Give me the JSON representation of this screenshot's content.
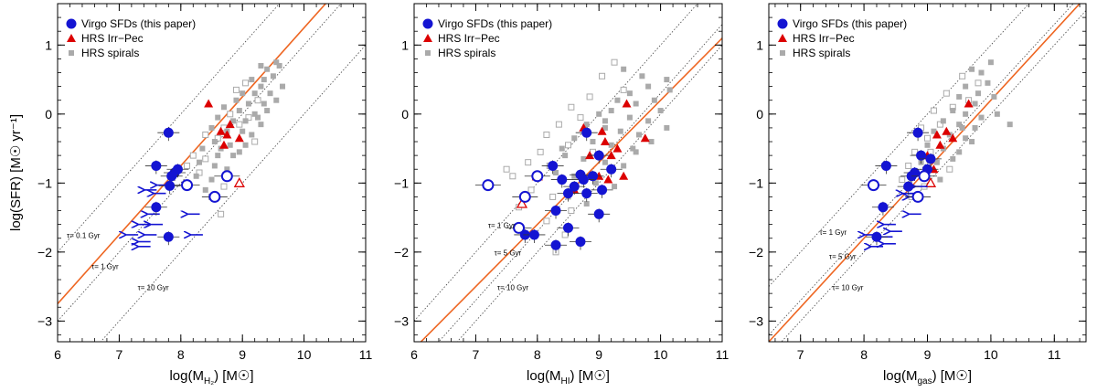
{
  "chart_data": [
    {
      "type": "scatter",
      "panel": "left",
      "xlabel_main": "log(M",
      "xlabel_sub": "H₂",
      "xlabel_tail": ") [M☉]",
      "ylabel": "log(SFR) [M☉ yr⁻¹]",
      "xlim": [
        6,
        11
      ],
      "ylim": [
        -3.3,
        1.6
      ],
      "xticks": [
        6,
        7,
        8,
        9,
        10,
        11
      ],
      "xtick_labels": [
        "6",
        "7",
        "8",
        "9",
        "10",
        "11"
      ],
      "yticks": [
        1,
        0,
        -1,
        -2,
        -3
      ],
      "ytick_labels": [
        "1",
        "0",
        "−1",
        "−2",
        "−3"
      ],
      "legend": [
        "Virgo SFDs (this paper)",
        "HRS Irr−Pec",
        "HRS spirals"
      ],
      "fit_line": {
        "slope": 1.0,
        "intercept": -8.75
      },
      "tau_lines": [
        {
          "label": "τ= 0.1 Gyr",
          "log_tau": 8,
          "label_x": 6.15,
          "label_y": -1.8
        },
        {
          "label": "τ= 1 Gyr",
          "log_tau": 9,
          "label_x": 6.55,
          "label_y": -2.25
        },
        {
          "label": "τ= 10 Gyr",
          "log_tau": 10,
          "label_x": 7.3,
          "label_y": -2.55
        }
      ],
      "virgo_filled": [
        [
          7.8,
          -0.27
        ],
        [
          7.6,
          -0.75
        ],
        [
          7.9,
          -0.85
        ],
        [
          7.95,
          -0.8
        ],
        [
          7.85,
          -0.9
        ],
        [
          7.82,
          -1.04
        ],
        [
          7.6,
          -1.35
        ],
        [
          7.8,
          -1.78
        ]
      ],
      "virgo_open": [
        [
          8.1,
          -1.03
        ],
        [
          8.75,
          -0.9
        ],
        [
          8.55,
          -1.2
        ]
      ],
      "virgo_upper_limits": [
        [
          7.4,
          -1.1
        ],
        [
          7.6,
          -1.03
        ],
        [
          7.55,
          -1.15
        ],
        [
          7.45,
          -1.45
        ],
        [
          7.3,
          -1.6
        ],
        [
          7.5,
          -1.6
        ],
        [
          7.1,
          -1.75
        ],
        [
          7.4,
          -1.75
        ],
        [
          7.3,
          -1.85
        ],
        [
          7.3,
          -1.92
        ],
        [
          8.15,
          -1.75
        ],
        [
          8.1,
          -1.45
        ]
      ],
      "hrs_irr_filled": [
        [
          8.45,
          0.15
        ],
        [
          8.75,
          -0.3
        ],
        [
          8.65,
          -0.25
        ],
        [
          8.7,
          -0.45
        ],
        [
          8.95,
          -0.35
        ],
        [
          8.8,
          -0.15
        ]
      ],
      "hrs_irr_open": [
        [
          8.95,
          -1.0
        ]
      ],
      "hrs_spirals_filled": [
        [
          9.3,
          0.7
        ],
        [
          9.4,
          0.65
        ],
        [
          9.55,
          0.75
        ],
        [
          9.6,
          0.7
        ],
        [
          9.15,
          0.5
        ],
        [
          9.35,
          0.5
        ],
        [
          9.5,
          0.55
        ],
        [
          9.65,
          0.4
        ],
        [
          9.3,
          0.4
        ],
        [
          9.0,
          0.3
        ],
        [
          9.2,
          0.3
        ],
        [
          9.45,
          0.3
        ],
        [
          8.9,
          0.2
        ],
        [
          9.1,
          0.15
        ],
        [
          9.35,
          0.15
        ],
        [
          9.55,
          0.2
        ],
        [
          8.7,
          0.1
        ],
        [
          8.95,
          0.05
        ],
        [
          9.2,
          0.0
        ],
        [
          9.4,
          0.05
        ],
        [
          8.6,
          -0.05
        ],
        [
          8.85,
          -0.1
        ],
        [
          9.05,
          -0.1
        ],
        [
          9.3,
          -0.15
        ],
        [
          8.5,
          -0.2
        ],
        [
          8.75,
          -0.25
        ],
        [
          9.0,
          -0.25
        ],
        [
          9.15,
          -0.3
        ],
        [
          8.55,
          -0.4
        ],
        [
          8.8,
          -0.45
        ],
        [
          9.05,
          -0.45
        ],
        [
          8.35,
          -0.5
        ],
        [
          8.6,
          -0.6
        ],
        [
          8.85,
          -0.6
        ],
        [
          8.3,
          -0.7
        ],
        [
          8.55,
          -0.75
        ],
        [
          8.75,
          -0.8
        ],
        [
          8.25,
          -0.9
        ],
        [
          8.5,
          -0.95
        ],
        [
          8.4,
          -1.1
        ],
        [
          8.95,
          -0.55
        ],
        [
          9.25,
          -0.05
        ],
        [
          8.65,
          -0.5
        ]
      ],
      "hrs_spirals_open": [
        [
          9.05,
          0.45
        ],
        [
          8.9,
          0.35
        ],
        [
          9.25,
          0.2
        ],
        [
          8.8,
          0.0
        ],
        [
          9.1,
          -0.05
        ],
        [
          8.7,
          -0.2
        ],
        [
          8.95,
          -0.15
        ],
        [
          8.4,
          -0.3
        ],
        [
          8.6,
          -0.35
        ],
        [
          8.2,
          -0.6
        ],
        [
          8.4,
          -0.65
        ],
        [
          8.3,
          -0.85
        ],
        [
          8.1,
          -0.75
        ],
        [
          9.2,
          -0.4
        ],
        [
          8.7,
          -1.05
        ],
        [
          8.5,
          -1.2
        ],
        [
          8.65,
          -1.45
        ]
      ]
    },
    {
      "type": "scatter",
      "panel": "middle",
      "xlabel_main": "log(M",
      "xlabel_sub": "HI",
      "xlabel_tail": ") [M☉]",
      "xlim": [
        6,
        11
      ],
      "ylim": [
        -3.3,
        1.6
      ],
      "xticks": [
        6,
        7,
        8,
        9,
        10,
        11
      ],
      "xtick_labels": [
        "6",
        "7",
        "8",
        "9",
        "10",
        "11"
      ],
      "yticks": [
        1,
        0,
        -1,
        -2,
        -3
      ],
      "ytick_labels": [
        "1",
        "0",
        "−1",
        "−2",
        "−3"
      ],
      "legend": [
        "Virgo SFDs (this paper)",
        "HRS Irr−Pec",
        "HRS spirals"
      ],
      "fit_line": {
        "slope": 0.9,
        "intercept": -8.8
      },
      "tau_lines": [
        {
          "label": "τ= 1 Gyr",
          "log_tau": 9,
          "label_x": 7.2,
          "label_y": -1.65
        },
        {
          "label": "τ= 5 Gyr",
          "log_tau": 9.7,
          "label_x": 7.3,
          "label_y": -2.05
        },
        {
          "label": "τ= 10 Gyr",
          "log_tau": 10,
          "label_x": 7.35,
          "label_y": -2.55
        }
      ],
      "virgo_filled": [
        [
          8.25,
          -0.75
        ],
        [
          8.8,
          -0.27
        ],
        [
          8.4,
          -0.95
        ],
        [
          9.0,
          -0.6
        ],
        [
          8.7,
          -0.88
        ],
        [
          8.9,
          -0.9
        ],
        [
          8.6,
          -1.05
        ],
        [
          8.5,
          -1.15
        ],
        [
          8.8,
          -1.15
        ],
        [
          9.05,
          -1.1
        ],
        [
          8.3,
          -1.4
        ],
        [
          9.0,
          -1.45
        ],
        [
          8.5,
          -1.65
        ],
        [
          7.8,
          -1.75
        ],
        [
          7.95,
          -1.75
        ],
        [
          8.3,
          -1.9
        ],
        [
          8.7,
          -1.85
        ],
        [
          9.2,
          -0.8
        ],
        [
          8.75,
          -0.95
        ]
      ],
      "virgo_open": [
        [
          7.2,
          -1.03
        ],
        [
          7.8,
          -1.2
        ],
        [
          8.0,
          -0.9
        ],
        [
          7.7,
          -1.65
        ]
      ],
      "hrs_irr_filled": [
        [
          9.45,
          0.15
        ],
        [
          9.75,
          -0.35
        ],
        [
          8.75,
          -0.2
        ],
        [
          9.05,
          -0.25
        ],
        [
          9.1,
          -0.4
        ],
        [
          9.3,
          -0.5
        ],
        [
          8.85,
          -0.6
        ],
        [
          9.2,
          -0.6
        ],
        [
          9.0,
          -0.9
        ],
        [
          9.15,
          -0.95
        ],
        [
          9.4,
          -0.9
        ],
        [
          8.6,
          -1.1
        ]
      ],
      "hrs_irr_open": [
        [
          7.75,
          -1.3
        ],
        [
          8.0,
          -0.9
        ]
      ],
      "hrs_spirals_filled": [
        [
          9.4,
          0.65
        ],
        [
          9.7,
          0.55
        ],
        [
          9.8,
          0.4
        ],
        [
          9.5,
          0.3
        ],
        [
          10.1,
          0.5
        ],
        [
          10.15,
          0.35
        ],
        [
          9.3,
          0.2
        ],
        [
          9.6,
          0.15
        ],
        [
          9.9,
          0.2
        ],
        [
          10.0,
          0.05
        ],
        [
          9.0,
          0.0
        ],
        [
          9.2,
          0.05
        ],
        [
          9.5,
          -0.05
        ],
        [
          9.8,
          -0.1
        ],
        [
          8.8,
          -0.15
        ],
        [
          9.1,
          -0.2
        ],
        [
          9.35,
          -0.25
        ],
        [
          9.65,
          -0.3
        ],
        [
          10.1,
          -0.2
        ],
        [
          8.6,
          -0.35
        ],
        [
          8.9,
          -0.4
        ],
        [
          9.2,
          -0.45
        ],
        [
          9.55,
          -0.5
        ],
        [
          8.45,
          -0.6
        ],
        [
          8.75,
          -0.65
        ],
        [
          9.1,
          -0.7
        ],
        [
          9.4,
          -0.75
        ],
        [
          8.3,
          -0.85
        ],
        [
          8.6,
          -0.9
        ],
        [
          8.95,
          -1.0
        ],
        [
          9.25,
          -1.05
        ],
        [
          8.5,
          -1.2
        ],
        [
          8.8,
          -1.3
        ],
        [
          9.6,
          -0.55
        ],
        [
          9.1,
          -0.1
        ],
        [
          8.4,
          -0.5
        ],
        [
          9.85,
          -0.4
        ]
      ],
      "hrs_spirals_open": [
        [
          9.25,
          0.75
        ],
        [
          9.05,
          0.55
        ],
        [
          9.4,
          0.35
        ],
        [
          8.85,
          0.25
        ],
        [
          8.55,
          0.1
        ],
        [
          8.7,
          -0.05
        ],
        [
          8.35,
          -0.15
        ],
        [
          8.15,
          -0.3
        ],
        [
          8.5,
          -0.45
        ],
        [
          8.05,
          -0.55
        ],
        [
          7.85,
          -0.7
        ],
        [
          8.2,
          -0.75
        ],
        [
          7.6,
          -0.9
        ],
        [
          8.4,
          -0.95
        ],
        [
          7.9,
          -1.1
        ],
        [
          8.25,
          -1.2
        ],
        [
          7.7,
          -1.35
        ],
        [
          8.55,
          -1.4
        ],
        [
          8.15,
          -1.55
        ],
        [
          8.45,
          -1.75
        ],
        [
          8.3,
          -2.0
        ],
        [
          7.5,
          -0.8
        ],
        [
          8.9,
          -0.55
        ]
      ]
    },
    {
      "type": "scatter",
      "panel": "right",
      "xlabel_main": "log(M",
      "xlabel_sub": "gas",
      "xlabel_tail": ") [M☉]",
      "xlim": [
        6.5,
        11.5
      ],
      "ylim": [
        -3.3,
        1.6
      ],
      "xticks": [
        7,
        8,
        9,
        10,
        11
      ],
      "xtick_labels": [
        "7",
        "8",
        "9",
        "10",
        "11"
      ],
      "yticks": [
        1,
        0,
        -1,
        -2,
        -3
      ],
      "ytick_labels": [
        "1",
        "0",
        "−1",
        "−2",
        "−3"
      ],
      "legend": [
        "Virgo SFDs (this paper)",
        "HRS Irr−Pec",
        "HRS spirals"
      ],
      "fit_line": {
        "slope": 1.0,
        "intercept": -9.8
      },
      "tau_lines": [
        {
          "label": "τ= 1 Gyr",
          "log_tau": 9,
          "label_x": 7.3,
          "label_y": -1.75
        },
        {
          "label": "τ= 5 Gyr",
          "log_tau": 9.7,
          "label_x": 7.45,
          "label_y": -2.1
        },
        {
          "label": "τ= 10 Gyr",
          "log_tau": 10,
          "label_x": 7.5,
          "label_y": -2.55
        }
      ],
      "virgo_filled": [
        [
          8.85,
          -0.27
        ],
        [
          8.35,
          -0.75
        ],
        [
          8.9,
          -0.6
        ],
        [
          8.8,
          -0.85
        ],
        [
          8.75,
          -0.9
        ],
        [
          9.0,
          -0.8
        ],
        [
          8.7,
          -1.05
        ],
        [
          9.05,
          -0.65
        ],
        [
          8.3,
          -1.35
        ],
        [
          8.2,
          -1.78
        ]
      ],
      "virgo_open": [
        [
          8.15,
          -1.03
        ],
        [
          8.95,
          -0.9
        ],
        [
          8.85,
          -1.2
        ]
      ],
      "virgo_upper_limits": [
        [
          8.8,
          -1.05
        ],
        [
          8.6,
          -1.15
        ],
        [
          8.7,
          -1.2
        ],
        [
          8.7,
          -1.45
        ],
        [
          8.3,
          -1.6
        ],
        [
          8.4,
          -1.7
        ],
        [
          8.0,
          -1.75
        ],
        [
          8.25,
          -1.78
        ],
        [
          8.3,
          -1.88
        ],
        [
          8.1,
          -1.92
        ]
      ],
      "hrs_irr_filled": [
        [
          9.65,
          0.15
        ],
        [
          9.15,
          -0.3
        ],
        [
          9.3,
          -0.25
        ],
        [
          9.2,
          -0.45
        ],
        [
          9.4,
          -0.35
        ],
        [
          9.0,
          -0.6
        ],
        [
          9.1,
          -0.8
        ]
      ],
      "hrs_irr_open": [
        [
          9.05,
          -1.0
        ]
      ],
      "hrs_spirals_filled": [
        [
          10.0,
          0.75
        ],
        [
          9.85,
          0.6
        ],
        [
          9.7,
          0.65
        ],
        [
          9.95,
          0.45
        ],
        [
          9.6,
          0.4
        ],
        [
          9.8,
          0.3
        ],
        [
          9.5,
          0.25
        ],
        [
          9.75,
          0.15
        ],
        [
          10.05,
          0.25
        ],
        [
          9.4,
          0.05
        ],
        [
          9.6,
          0.0
        ],
        [
          9.85,
          -0.05
        ],
        [
          10.1,
          0.0
        ],
        [
          9.25,
          -0.1
        ],
        [
          9.5,
          -0.15
        ],
        [
          9.75,
          -0.2
        ],
        [
          10.3,
          -0.15
        ],
        [
          9.1,
          -0.25
        ],
        [
          9.35,
          -0.3
        ],
        [
          9.6,
          -0.35
        ],
        [
          9.0,
          -0.45
        ],
        [
          9.25,
          -0.5
        ],
        [
          9.5,
          -0.55
        ],
        [
          8.9,
          -0.7
        ],
        [
          9.15,
          -0.7
        ],
        [
          9.4,
          -0.65
        ],
        [
          9.0,
          -0.9
        ],
        [
          9.2,
          -0.95
        ],
        [
          9.55,
          -0.2
        ],
        [
          9.7,
          -0.4
        ]
      ],
      "hrs_spirals_open": [
        [
          9.8,
          0.45
        ],
        [
          9.55,
          0.55
        ],
        [
          9.65,
          0.2
        ],
        [
          9.3,
          0.3
        ],
        [
          9.4,
          0.1
        ],
        [
          9.1,
          0.05
        ],
        [
          9.2,
          -0.15
        ],
        [
          8.9,
          -0.2
        ],
        [
          9.0,
          -0.35
        ],
        [
          8.8,
          -0.55
        ],
        [
          9.05,
          -0.55
        ],
        [
          8.7,
          -0.75
        ],
        [
          8.95,
          -1.05
        ],
        [
          8.6,
          -0.95
        ],
        [
          8.75,
          -1.2
        ],
        [
          9.35,
          -0.8
        ]
      ]
    }
  ],
  "colors": {
    "virgo": "#1414d2",
    "hrs_irr": "#dc0000",
    "hrs_spirals": "#aaaaaa",
    "fit_line": "#ee6622",
    "tau_line": "#444444"
  }
}
